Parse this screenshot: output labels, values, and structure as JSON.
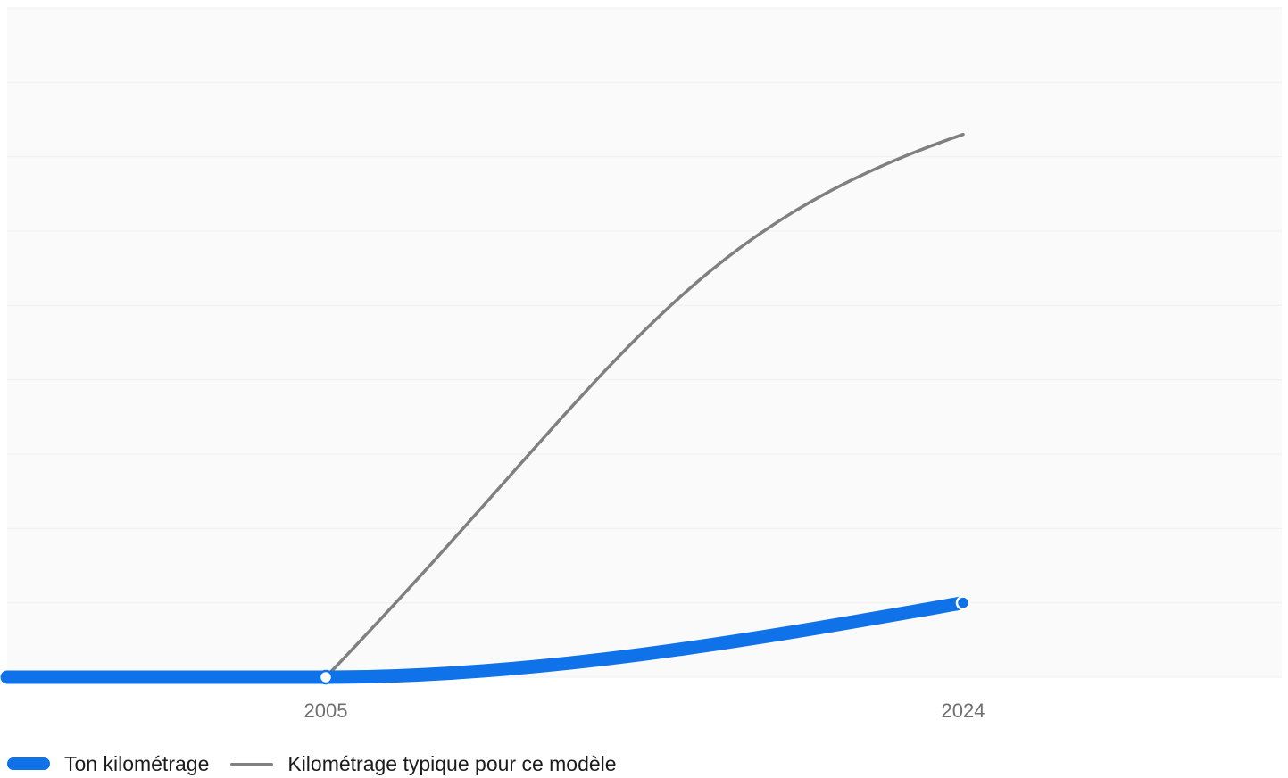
{
  "colors": {
    "plot_background": "#fafafa",
    "grid": "#f0f0f0",
    "yours": "#0f72e8",
    "typical": "#808080",
    "axis_text": "#6f6f6f",
    "legend_text": "#1c1c1c"
  },
  "chart_data": {
    "type": "line",
    "title": "",
    "xlabel": "",
    "ylabel": "",
    "x_ticks": [
      "2005",
      "2024"
    ],
    "xlim": [
      1995.5,
      2033.5
    ],
    "ylim": [
      0,
      9
    ],
    "grid": {
      "horizontal": true,
      "vertical": false,
      "lines": 9
    },
    "legend_position": "bottom-left",
    "series": [
      {
        "name": "Ton kilométrage",
        "style": "thick",
        "color": "#0f72e8",
        "points": [
          [
            1995.5,
            0
          ],
          [
            2005,
            0
          ],
          [
            2024,
            1
          ]
        ],
        "markers": [
          2005,
          2024
        ]
      },
      {
        "name": "Kilométrage typique pour ce modèle",
        "style": "thin",
        "color": "#808080",
        "points": [
          [
            2005,
            0
          ],
          [
            2024,
            7.3
          ]
        ],
        "markers": []
      }
    ]
  }
}
